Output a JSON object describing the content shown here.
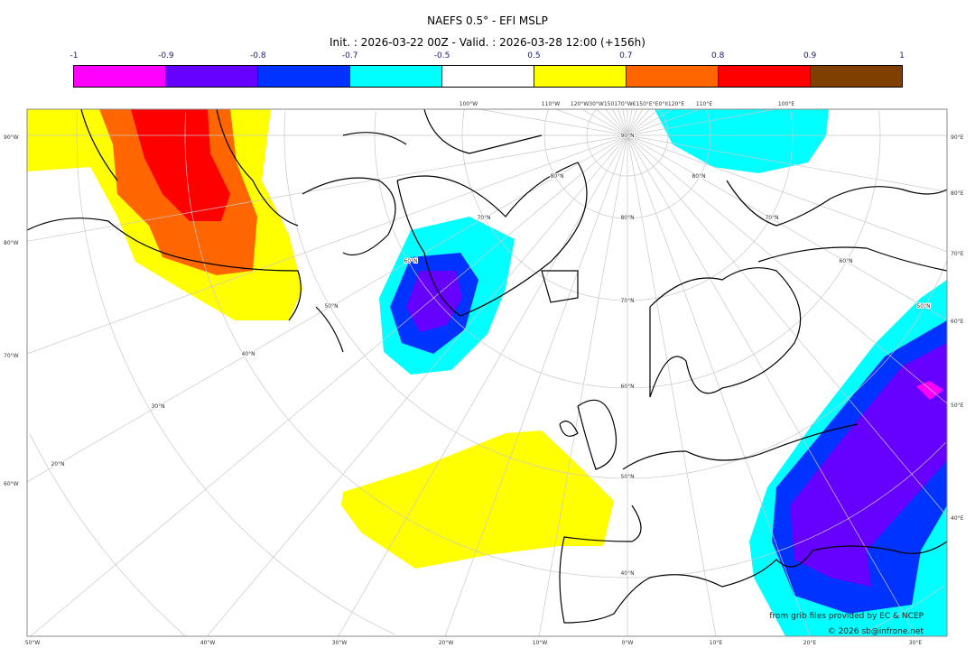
{
  "title": "NAEFS 0.5° - EFI MSLP",
  "subtitle": "Init. : 2026-03-22 00Z - Valid. : 2026-03-28 12:00 (+156h)",
  "colorbar": {
    "ticks": [
      "-1",
      "-0.9",
      "-0.8",
      "-0.7",
      "-0.5",
      "0.5",
      "0.7",
      "0.8",
      "0.9",
      "1"
    ],
    "colors": [
      "#ff00ff",
      "#6600ff",
      "#0033ff",
      "#00ffff",
      "#ffffff",
      "#ffff00",
      "#ff6600",
      "#ff0000",
      "#7f3f00"
    ]
  },
  "labels": {
    "left": [
      "90°W",
      "80°W",
      "70°W",
      "60°W"
    ],
    "bottom": [
      "50°W",
      "40°W",
      "30°W",
      "20°W",
      "10°W",
      "0°W",
      "10°E",
      "20°E",
      "30°E"
    ],
    "right": [
      "90°E",
      "80°E",
      "70°E",
      "60°E",
      "50°E",
      "40°E"
    ],
    "top": [
      "100°W",
      "110°W",
      "120°W30°W150170°W€150°E°E0°II120°E",
      "110°E",
      "100°E"
    ],
    "lat": [
      "90°N",
      "80°N",
      "80°N",
      "80°N",
      "70°N",
      "70°N",
      "60°N",
      "60°N",
      "70°N",
      "50°N",
      "50°N",
      "60°N",
      "40°N",
      "30°N",
      "20°N",
      "50°N",
      "40°N"
    ]
  },
  "credits": [
    "from grib files provided by EC & NCEP",
    "© 2026 sb@infrone.net"
  ]
}
